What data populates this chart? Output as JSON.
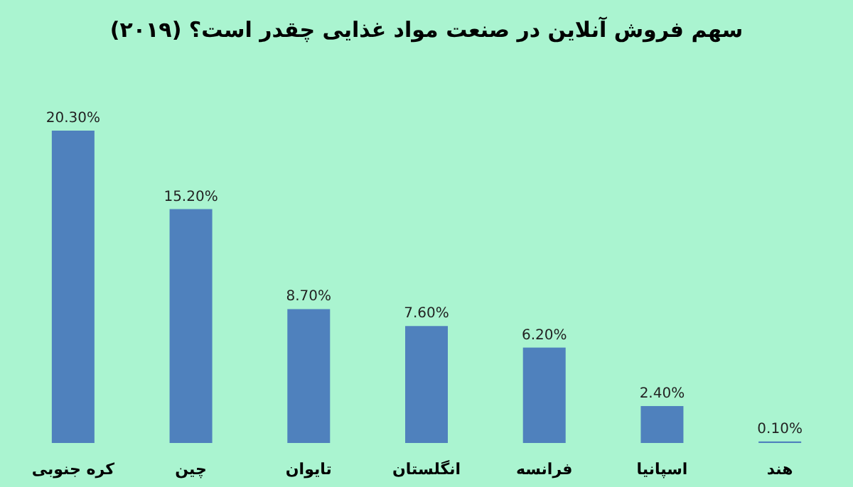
{
  "chart_data": {
    "type": "bar",
    "title": "سهم فروش آنلاین در صنعت مواد غذایی چقدر است؟ (۲۰۱۹)",
    "categories": [
      "کره جنوبی",
      "چین",
      "تایوان",
      "انگلستان",
      "فرانسه",
      "اسپانیا",
      "هند"
    ],
    "values": [
      20.3,
      15.2,
      8.7,
      7.6,
      6.2,
      2.4,
      0.1
    ],
    "value_labels": [
      "20.30%",
      "15.20%",
      "8.70%",
      "7.60%",
      "6.20%",
      "2.40%",
      "0.10%"
    ],
    "color": "#4f81bd",
    "grid": false,
    "legend": false
  }
}
